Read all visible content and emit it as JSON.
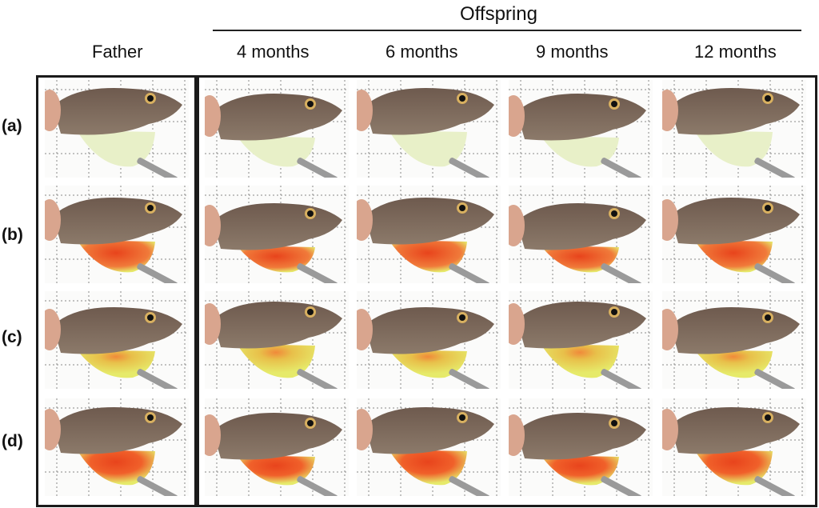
{
  "header": {
    "offspring_title": "Offspring",
    "column_labels": [
      "Father",
      "4 months",
      "6 months",
      "9 months",
      "12 months"
    ]
  },
  "rows": [
    {
      "label": "(a)",
      "dewlap": "pale"
    },
    {
      "label": "(b)",
      "dewlap": "red"
    },
    {
      "label": "(c)",
      "dewlap": "yellow-orange-center"
    },
    {
      "label": "(d)",
      "dewlap": "red-center-yellow-edge"
    }
  ],
  "colors": {
    "skin_dark": "#6e5a4e",
    "skin_light": "#8c7a6a",
    "pale_dewlap": "#e8f0c8",
    "yellow_dewlap": "#e6ea6a",
    "red_dewlap": "#e8441c",
    "finger": "#d9a58e"
  }
}
